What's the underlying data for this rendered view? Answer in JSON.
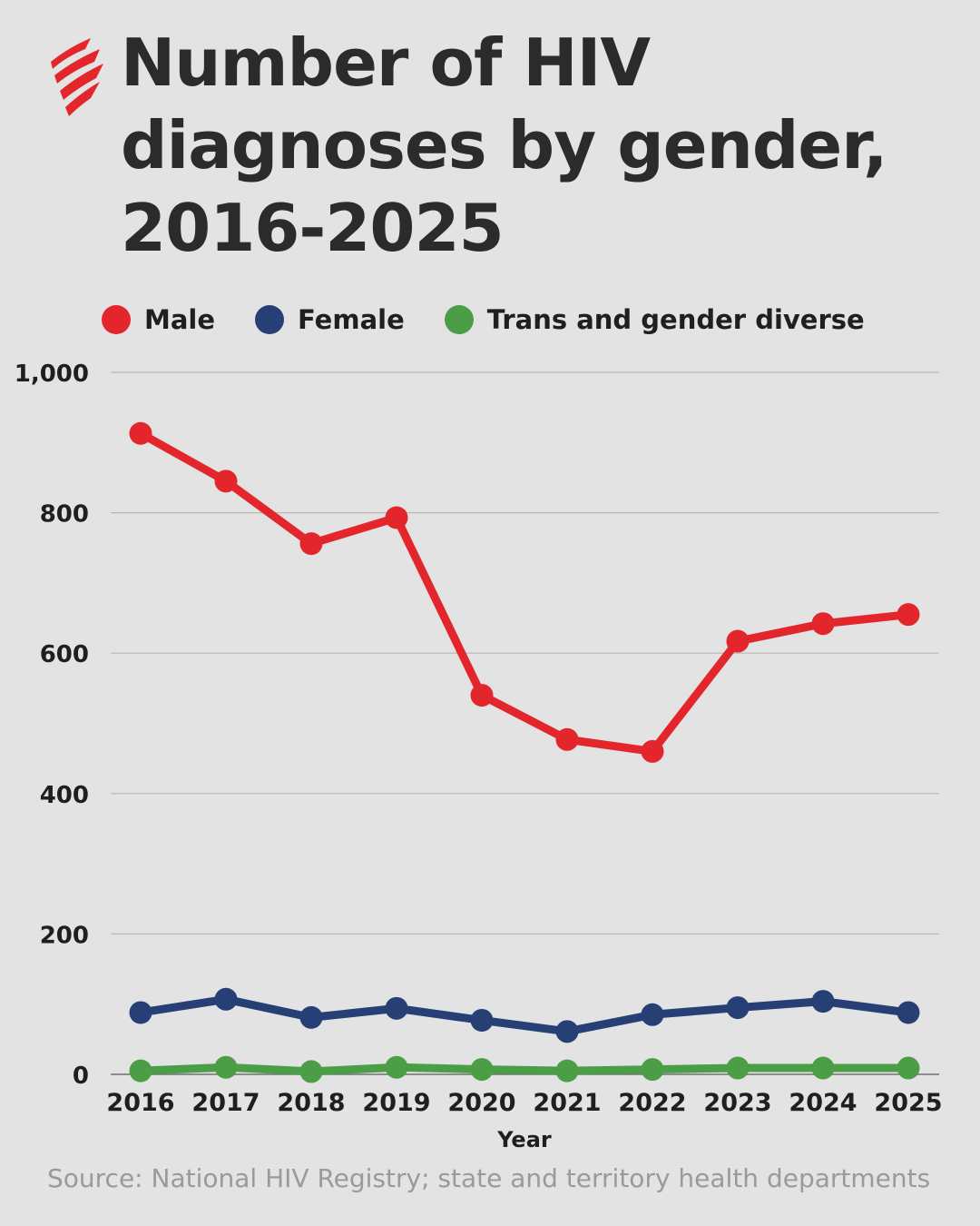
{
  "header": {
    "title_lines": [
      "Number of HIV",
      "diagnoses by gender,",
      "2016-2025"
    ],
    "logo": "sbs-logo"
  },
  "legend": [
    {
      "label": "Male",
      "color": "#e3262b"
    },
    {
      "label": "Female",
      "color": "#263f75"
    },
    {
      "label": "Trans and gender diverse",
      "color": "#4b9e45"
    }
  ],
  "chart_data": {
    "type": "line",
    "title": "Number of HIV diagnoses by gender, 2016-2025",
    "xlabel": "Year",
    "ylabel": "",
    "x": [
      "2016",
      "2017",
      "2018",
      "2019",
      "2020",
      "2021",
      "2022",
      "2023",
      "2024",
      "2025"
    ],
    "ylim": [
      0,
      1000
    ],
    "yticks": [
      0,
      200,
      400,
      600,
      800,
      1000
    ],
    "ytick_labels": [
      "0",
      "200",
      "400",
      "600",
      "800",
      "1,000"
    ],
    "grid": true,
    "legend_position": "top-left",
    "series": [
      {
        "name": "Male",
        "color": "#e3262b",
        "values": [
          913,
          845,
          756,
          793,
          540,
          477,
          460,
          617,
          642,
          655
        ]
      },
      {
        "name": "Female",
        "color": "#263f75",
        "values": [
          88,
          107,
          81,
          94,
          77,
          61,
          85,
          95,
          104,
          88
        ]
      },
      {
        "name": "Trans and gender diverse",
        "color": "#4b9e45",
        "values": [
          5,
          10,
          4,
          10,
          7,
          5,
          7,
          9,
          9,
          9
        ]
      }
    ]
  },
  "footer": {
    "source": "Source: National HIV Registry; state and territory health departments"
  }
}
